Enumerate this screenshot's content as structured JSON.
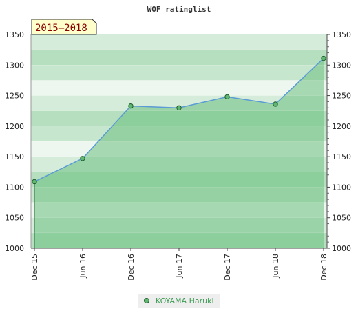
{
  "chart_data": {
    "type": "area",
    "title": "WOF ratinglist",
    "period_label": "2015–2018",
    "xlabel": "",
    "ylabel": "",
    "x_categories": [
      "Dec 15",
      "Jun 16",
      "Dec 16",
      "Jun 17",
      "Dec 17",
      "Jun 18",
      "Dec 18"
    ],
    "series": [
      {
        "name": "KOYAMA Haruki",
        "values": [
          1109,
          1147,
          1233,
          1230,
          1248,
          1236,
          1311
        ]
      }
    ],
    "ylim": [
      1000,
      1350
    ],
    "y_ticks": [
      1000,
      1050,
      1100,
      1150,
      1200,
      1250,
      1300,
      1350
    ],
    "y_axes": [
      "left",
      "right"
    ],
    "legend_position": "bottom",
    "grid": "alternating horizontal bands",
    "colors": {
      "line": "#5b9bd5",
      "marker_fill": "#5fb870",
      "marker_stroke": "#1f5c2a",
      "area_fill": "#6cbf80",
      "legend_text": "#3c9a52",
      "period_label_bg": "#ffffcc",
      "period_label_text": "#8b0000"
    }
  }
}
